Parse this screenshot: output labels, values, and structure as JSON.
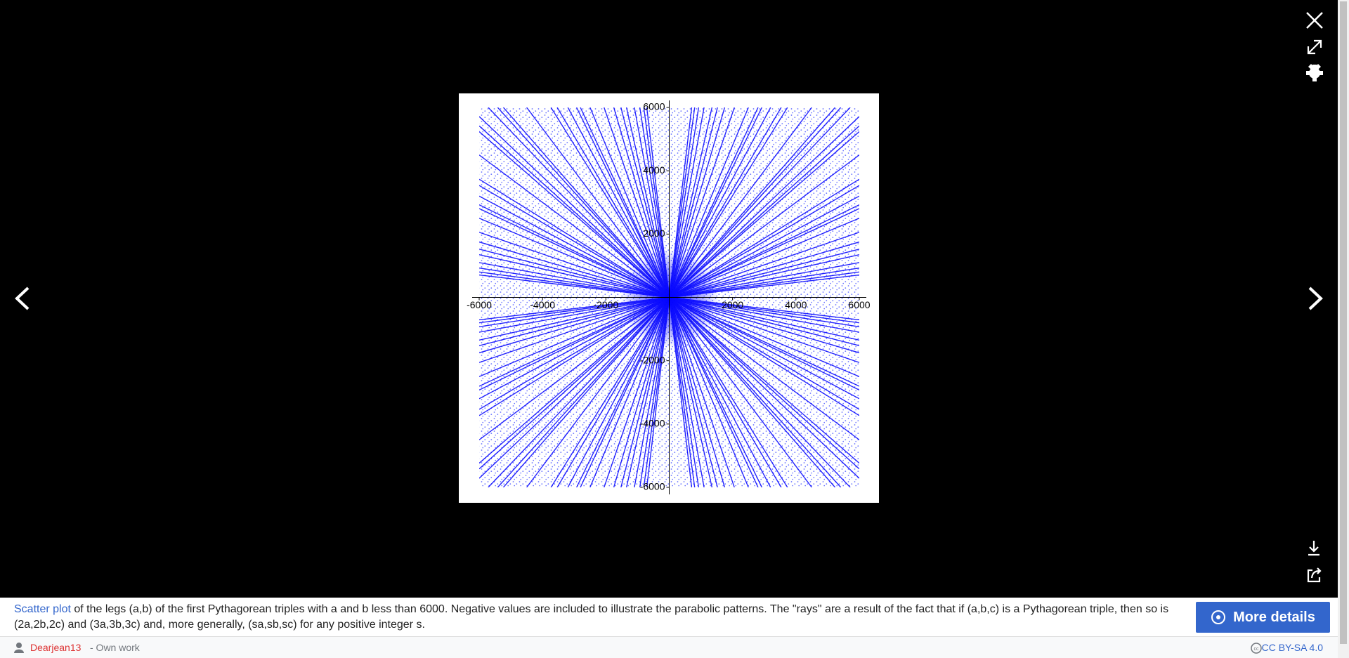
{
  "caption": {
    "link": "Scatter plot",
    "text": "of the legs (a,b) of the first Pythagorean triples with a and b less than 6000. Negative values are included to illustrate the parabolic patterns. The \"rays\" are a result of the fact that if (a,b,c) is a Pythagorean triple, then so is (2a,2b,2c) and (3a,3b,3c) and, more generally, (sa,sb,sc) for any positive integer s."
  },
  "button": "More details",
  "author": "Dearjean13",
  "source": "- Own work",
  "license": "CC BY-SA 4.0",
  "chart_data": {
    "type": "scatter",
    "color": "#0000ff",
    "xlim": [
      -6000,
      6000
    ],
    "ylim": [
      -6000,
      6000
    ],
    "xticks": [
      -6000,
      -4000,
      -2000,
      2000,
      4000,
      6000
    ],
    "yticks": [
      -6000,
      -4000,
      -2000,
      2000,
      4000,
      6000
    ]
  }
}
